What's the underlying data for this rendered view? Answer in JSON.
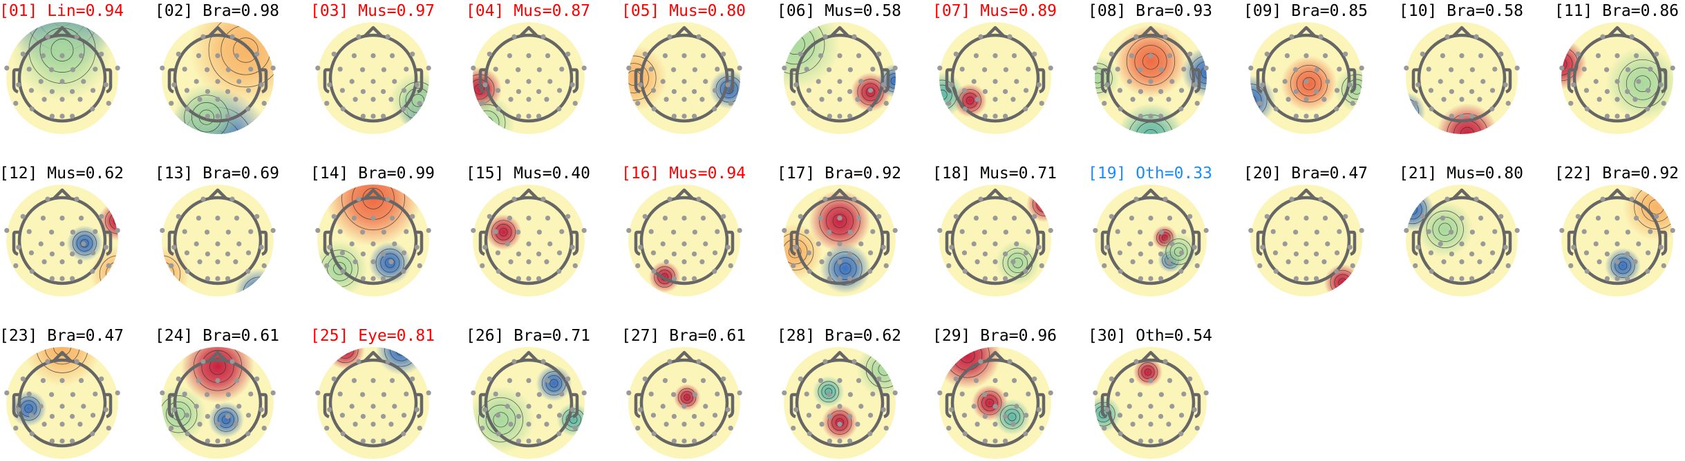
{
  "chart_data": {
    "type": "topomap",
    "colormap": "RdYlBu_r",
    "label_colors": {
      "flagged": "#ff0000",
      "kept": "#000000",
      "other": "#1a8cff"
    },
    "components": [
      {
        "title": "[01] Lin=0.94",
        "label_color": "#ff0000"
      },
      {
        "title": "[02] Bra=0.98",
        "label_color": "#000000"
      },
      {
        "title": "[03] Mus=0.97",
        "label_color": "#ff0000"
      },
      {
        "title": "[04] Mus=0.87",
        "label_color": "#ff0000"
      },
      {
        "title": "[05] Mus=0.80",
        "label_color": "#ff0000"
      },
      {
        "title": "[06] Mus=0.58",
        "label_color": "#000000"
      },
      {
        "title": "[07] Mus=0.89",
        "label_color": "#ff0000"
      },
      {
        "title": "[08] Bra=0.93",
        "label_color": "#000000"
      },
      {
        "title": "[09] Bra=0.85",
        "label_color": "#000000"
      },
      {
        "title": "[10] Bra=0.58",
        "label_color": "#000000"
      },
      {
        "title": "[11] Bra=0.86",
        "label_color": "#000000"
      },
      {
        "title": "[12] Mus=0.62",
        "label_color": "#000000"
      },
      {
        "title": "[13] Bra=0.69",
        "label_color": "#000000"
      },
      {
        "title": "[14] Bra=0.99",
        "label_color": "#000000"
      },
      {
        "title": "[15] Mus=0.40",
        "label_color": "#000000"
      },
      {
        "title": "[16] Mus=0.94",
        "label_color": "#ff0000"
      },
      {
        "title": "[17] Bra=0.92",
        "label_color": "#000000"
      },
      {
        "title": "[18] Mus=0.71",
        "label_color": "#000000"
      },
      {
        "title": "[19] Oth=0.33",
        "label_color": "#1a8cff"
      },
      {
        "title": "[20] Bra=0.47",
        "label_color": "#000000"
      },
      {
        "title": "[21] Mus=0.80",
        "label_color": "#000000"
      },
      {
        "title": "[22] Bra=0.92",
        "label_color": "#000000"
      },
      {
        "title": "[23] Bra=0.47",
        "label_color": "#000000"
      },
      {
        "title": "[24] Bra=0.61",
        "label_color": "#000000"
      },
      {
        "title": "[25] Eye=0.81",
        "label_color": "#ff0000"
      },
      {
        "title": "[26] Bra=0.71",
        "label_color": "#000000"
      },
      {
        "title": "[27] Bra=0.61",
        "label_color": "#000000"
      },
      {
        "title": "[28] Bra=0.62",
        "label_color": "#000000"
      },
      {
        "title": "[29] Bra=0.96",
        "label_color": "#000000"
      },
      {
        "title": "[30] Oth=0.54",
        "label_color": "#000000"
      }
    ]
  }
}
